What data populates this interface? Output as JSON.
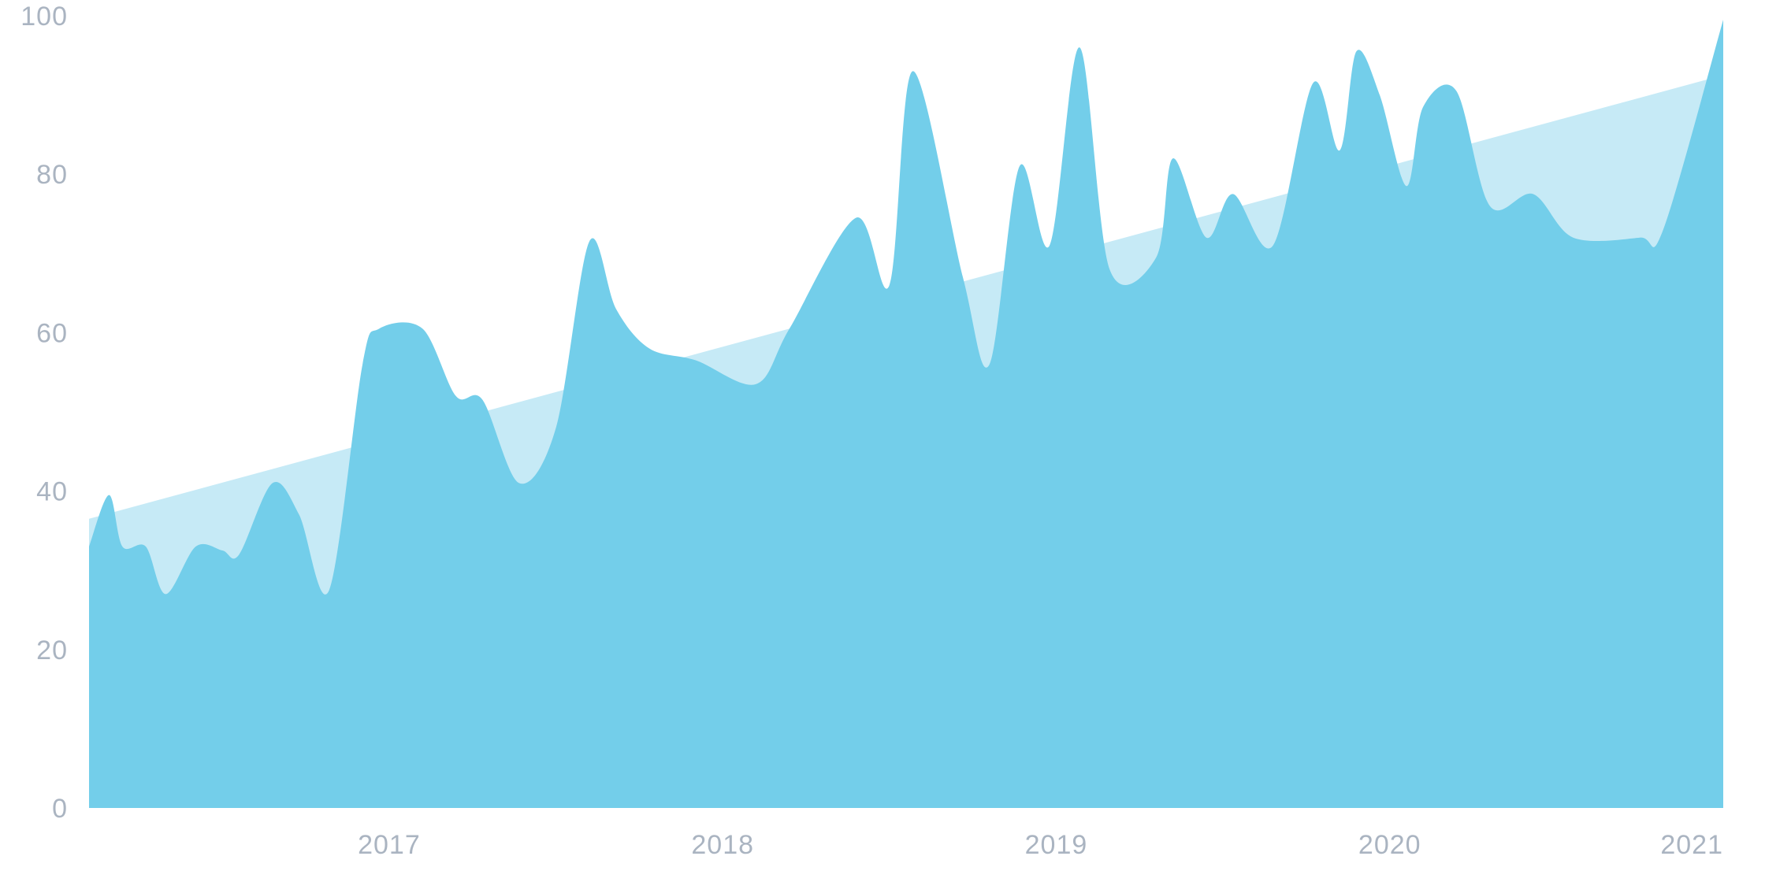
{
  "chart_data": {
    "type": "area",
    "title": "",
    "xlabel": "",
    "ylabel": "",
    "ylim": [
      0,
      100
    ],
    "xlim": [
      2016.1,
      2021.0
    ],
    "y_ticks": [
      "0",
      "20",
      "40",
      "60",
      "80",
      "100"
    ],
    "x_ticks": [
      "2017",
      "2018",
      "2019",
      "2020",
      "2021"
    ],
    "grid": false,
    "legend": "none",
    "colors": {
      "series": "#73ceea",
      "trend": "#c6eaf6",
      "tick_text": "#aab4c1"
    },
    "series": [
      {
        "values": [
          [
            2016.1,
            33
          ],
          [
            2016.16,
            39.5
          ],
          [
            2016.2,
            33
          ],
          [
            2016.27,
            33
          ],
          [
            2016.33,
            27
          ],
          [
            2016.42,
            33
          ],
          [
            2016.5,
            32.5
          ],
          [
            2016.55,
            32
          ],
          [
            2016.65,
            41
          ],
          [
            2016.73,
            37
          ],
          [
            2016.82,
            27.5
          ],
          [
            2016.92,
            56
          ],
          [
            2016.97,
            60.5
          ],
          [
            2017.1,
            60.5
          ],
          [
            2017.2,
            52
          ],
          [
            2017.28,
            51.5
          ],
          [
            2017.39,
            41
          ],
          [
            2017.5,
            48
          ],
          [
            2017.6,
            71.5
          ],
          [
            2017.68,
            63
          ],
          [
            2017.78,
            58
          ],
          [
            2017.92,
            56.5
          ],
          [
            2018.1,
            53.5
          ],
          [
            2018.2,
            60.5
          ],
          [
            2018.4,
            74.5
          ],
          [
            2018.5,
            66
          ],
          [
            2018.57,
            93
          ],
          [
            2018.72,
            67
          ],
          [
            2018.8,
            56
          ],
          [
            2018.89,
            81
          ],
          [
            2018.98,
            71
          ],
          [
            2019.07,
            96
          ],
          [
            2019.16,
            68
          ],
          [
            2019.3,
            69.5
          ],
          [
            2019.35,
            82
          ],
          [
            2019.45,
            72
          ],
          [
            2019.53,
            77.5
          ],
          [
            2019.65,
            71
          ],
          [
            2019.77,
            91.5
          ],
          [
            2019.85,
            83
          ],
          [
            2019.9,
            95.5
          ],
          [
            2019.97,
            90
          ],
          [
            2020.05,
            78.5
          ],
          [
            2020.1,
            88.5
          ],
          [
            2020.2,
            90.5
          ],
          [
            2020.3,
            76
          ],
          [
            2020.43,
            77.5
          ],
          [
            2020.55,
            72
          ],
          [
            2020.75,
            72
          ],
          [
            2020.82,
            73
          ],
          [
            2021.0,
            99.5
          ]
        ]
      },
      {
        "type": "trend",
        "values": [
          [
            2016.1,
            36.5
          ],
          [
            2021.0,
            92.5
          ]
        ]
      }
    ]
  }
}
